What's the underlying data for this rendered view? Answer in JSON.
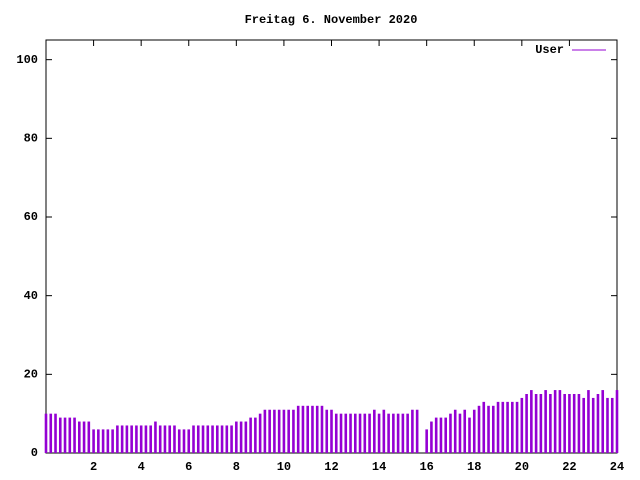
{
  "chart_data": {
    "type": "impulses",
    "title": "Freitag 6. November 2020",
    "x": [
      0,
      0.2,
      0.4,
      0.6,
      0.8,
      1,
      1.2,
      1.4,
      1.6,
      1.8,
      2,
      2.2,
      2.4,
      2.6,
      2.8,
      3,
      3.2,
      3.4,
      3.6,
      3.8,
      4,
      4.2,
      4.4,
      4.6,
      4.8,
      5,
      5.2,
      5.4,
      5.6,
      5.8,
      6,
      6.2,
      6.4,
      6.6,
      6.8,
      7,
      7.2,
      7.4,
      7.6,
      7.8,
      8,
      8.2,
      8.4,
      8.6,
      8.8,
      9,
      9.2,
      9.4,
      9.6,
      9.8,
      10,
      10.2,
      10.4,
      10.6,
      10.8,
      11,
      11.2,
      11.4,
      11.6,
      11.8,
      12,
      12.2,
      12.4,
      12.6,
      12.8,
      13,
      13.2,
      13.4,
      13.6,
      13.8,
      14,
      14.2,
      14.4,
      14.6,
      14.8,
      15,
      15.2,
      15.4,
      15.6,
      15.8,
      16,
      16.2,
      16.4,
      16.6,
      16.8,
      17,
      17.2,
      17.4,
      17.6,
      17.8,
      18,
      18.2,
      18.4,
      18.6,
      18.8,
      19,
      19.2,
      19.4,
      19.6,
      19.8,
      20,
      20.2,
      20.4,
      20.6,
      20.8,
      21,
      21.2,
      21.4,
      21.6,
      21.8,
      22,
      22.2,
      22.4,
      22.6,
      22.8,
      23,
      23.2,
      23.4,
      23.6,
      23.8,
      24
    ],
    "series": [
      {
        "name": "User",
        "color": "#9400d3",
        "values": [
          10,
          10,
          10,
          9,
          9,
          9,
          9,
          8,
          8,
          8,
          6,
          6,
          6,
          6,
          6,
          7,
          7,
          7,
          7,
          7,
          7,
          7,
          7,
          8,
          7,
          7,
          7,
          7,
          6,
          6,
          6,
          7,
          7,
          7,
          7,
          7,
          7,
          7,
          7,
          7,
          8,
          8,
          8,
          9,
          9,
          10,
          11,
          11,
          11,
          11,
          11,
          11,
          11,
          12,
          12,
          12,
          12,
          12,
          12,
          11,
          11,
          10,
          10,
          10,
          10,
          10,
          10,
          10,
          10,
          11,
          10,
          11,
          10,
          10,
          10,
          10,
          10,
          11,
          11,
          0,
          6,
          8,
          9,
          9,
          9,
          10,
          11,
          10,
          11,
          9,
          11,
          12,
          13,
          12,
          12,
          13,
          13,
          13,
          13,
          13,
          14,
          15,
          16,
          15,
          15,
          16,
          15,
          16,
          16,
          15,
          15,
          15,
          15,
          14,
          16,
          14,
          15,
          16,
          14,
          14,
          16
        ]
      }
    ],
    "xlim": [
      0,
      24
    ],
    "xticks": [
      2,
      4,
      6,
      8,
      10,
      12,
      14,
      16,
      18,
      20,
      22,
      24
    ],
    "ylim": [
      0,
      105
    ],
    "yticks": [
      0,
      20,
      40,
      60,
      80,
      100
    ],
    "legend": "top-right"
  }
}
